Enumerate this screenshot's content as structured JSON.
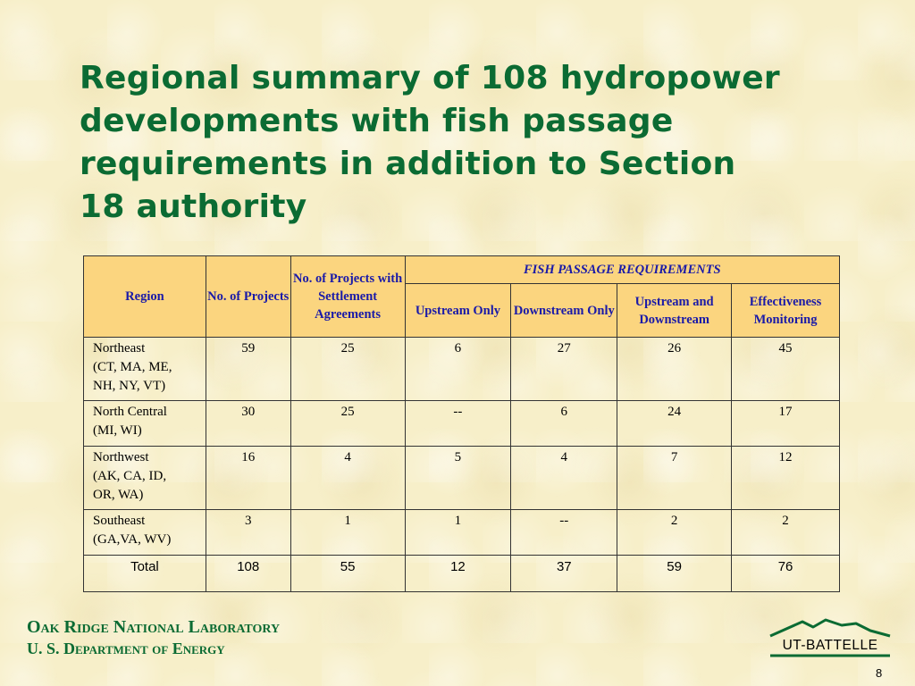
{
  "slide": {
    "title": "Regional summary of 108 hydropower\ndevelopments with fish passage\nrequirements in addition to Section\n18 authority",
    "page_number": "8"
  },
  "table": {
    "headers": {
      "region": "Region",
      "no_projects": "No. of Projects",
      "no_projects_settlement": "No. of Projects with Settlement Agreements",
      "fish_passage_group": "FISH  PASSAGE  REQUIREMENTS",
      "upstream_only": "Upstream Only",
      "downstream_only": "Downstream Only",
      "upstream_and_downstream": "Upstream and Downstream",
      "effectiveness_monitoring": "Effectiveness Monitoring"
    },
    "rows": [
      {
        "region": "Northeast\n(CT, MA, ME,\nNH, NY, VT)",
        "projects": "59",
        "settlement": "25",
        "upstream": "6",
        "downstream": "27",
        "both": "26",
        "monitoring": "45"
      },
      {
        "region": "North Central\n(MI, WI)",
        "projects": "30",
        "settlement": "25",
        "upstream": "--",
        "downstream": "6",
        "both": "24",
        "monitoring": "17"
      },
      {
        "region": "Northwest\n(AK, CA, ID,\nOR, WA)",
        "projects": "16",
        "settlement": "4",
        "upstream": "5",
        "downstream": "4",
        "both": "7",
        "monitoring": "12"
      },
      {
        "region": "Southeast\n(GA,VA, WV)",
        "projects": "3",
        "settlement": "1",
        "upstream": "1",
        "downstream": "--",
        "both": "2",
        "monitoring": "2"
      }
    ],
    "total": {
      "label": "Total",
      "projects": "108",
      "settlement": "55",
      "upstream": "12",
      "downstream": "37",
      "both": "59",
      "monitoring": "76"
    }
  },
  "footer": {
    "lab_name": "Oak Ridge National Laboratory",
    "department": "U. S. Department of Energy",
    "logo_text": "UT-BATTELLE"
  },
  "colors": {
    "title_green": "#0b6b33",
    "header_fill": "#fbd57f",
    "header_text": "#1a1aa8",
    "background": "#f7efc9"
  }
}
